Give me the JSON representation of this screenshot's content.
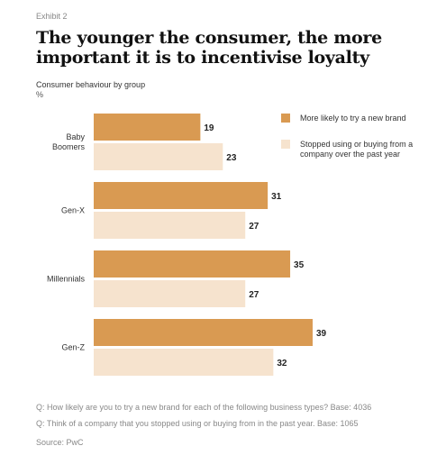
{
  "exhibit_label": "Exhibit 2",
  "chart_data": {
    "type": "bar",
    "orientation": "horizontal",
    "title": "The younger the consumer, the more important it is to incentivise loyalty",
    "subtitle": "Consumer behaviour by group",
    "unit": "%",
    "categories": [
      "Baby Boomers",
      "Gen-X",
      "Millennials",
      "Gen-Z"
    ],
    "series": [
      {
        "name": "More likely to try a new brand",
        "color": "#d99a52",
        "values": [
          19,
          31,
          35,
          39
        ]
      },
      {
        "name": "Stopped using or buying from a company over the past year",
        "color": "#f6e3ce",
        "values": [
          23,
          27,
          27,
          32
        ]
      }
    ],
    "legend_position": "top-right",
    "grid": false
  },
  "footnotes": [
    "Q: How likely are you to try a new brand for each of the following business types? Base: 4036",
    "Q: Think of a company that you stopped using or buying from in the past year. Base: 1065"
  ],
  "source": "Source: PwC"
}
